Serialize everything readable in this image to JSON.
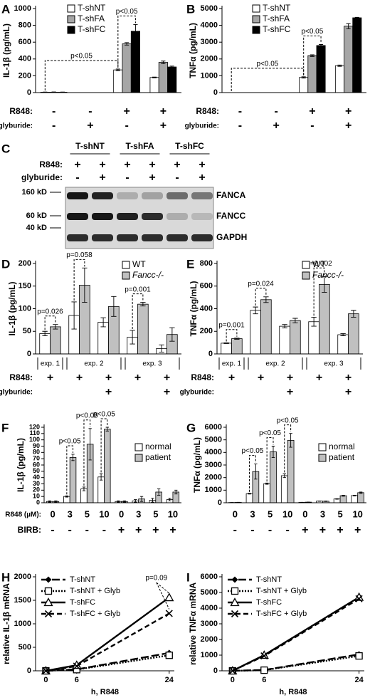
{
  "chart_data": [
    {
      "type": "bar",
      "panel": "A",
      "ylabel": "IL-1β (pg/mL)",
      "ylim": [
        0,
        1000
      ],
      "yticks": [
        0,
        200,
        400,
        600,
        800,
        1000
      ],
      "series": [
        {
          "name": "T-shNT",
          "color": "#ffffff",
          "values": [
            5,
            0,
            270,
            180
          ],
          "errors": [
            2,
            0,
            10,
            5
          ]
        },
        {
          "name": "T-shFA",
          "color": "#a6a6a6",
          "values": [
            5,
            0,
            580,
            360
          ],
          "errors": [
            3,
            0,
            15,
            15
          ]
        },
        {
          "name": "T-shFC",
          "color": "#000000",
          "values": [
            5,
            0,
            730,
            305
          ],
          "errors": [
            2,
            0,
            80,
            10
          ]
        }
      ],
      "conditions": [
        {
          "label": "R848:",
          "values": [
            "-",
            "-",
            "+",
            "+"
          ]
        },
        {
          "label": "glyburide:",
          "values": [
            "-",
            "+",
            "-",
            "+"
          ]
        }
      ],
      "annotations": [
        "p<0.05",
        "p<0.05"
      ],
      "legend": "upper left"
    },
    {
      "type": "bar",
      "panel": "B",
      "ylabel": "TNFα (pg/mL)",
      "ylim": [
        0,
        5000
      ],
      "yticks": [
        0,
        1000,
        2000,
        3000,
        4000,
        5000
      ],
      "series": [
        {
          "name": "T-shNT",
          "color": "#ffffff",
          "values": [
            0,
            0,
            900,
            1600
          ],
          "errors": [
            0,
            0,
            40,
            40
          ]
        },
        {
          "name": "T-shFA",
          "color": "#a6a6a6",
          "values": [
            0,
            0,
            2200,
            3950
          ],
          "errors": [
            0,
            0,
            50,
            150
          ]
        },
        {
          "name": "T-shFC",
          "color": "#000000",
          "values": [
            0,
            0,
            2800,
            4450
          ],
          "errors": [
            0,
            0,
            60,
            30
          ]
        }
      ],
      "conditions": [
        {
          "label": "R848:",
          "values": [
            "-",
            "-",
            "+",
            "+"
          ]
        },
        {
          "label": "glyburide:",
          "values": [
            "-",
            "+",
            "-",
            "+"
          ]
        }
      ],
      "annotations": [
        "p<0.05",
        "p<0.05"
      ],
      "legend": "upper left"
    },
    {
      "type": "bar",
      "panel": "D",
      "ylabel": "IL-1β (pg/mL)",
      "ylim": [
        0,
        200
      ],
      "yticks": [
        0,
        50,
        100,
        150,
        200
      ],
      "series": [
        {
          "name": "WT",
          "color": "#ffffff",
          "values": [
            45,
            85,
            70,
            37,
            12
          ],
          "errors": [
            5,
            30,
            10,
            15,
            8
          ]
        },
        {
          "name": "Fancc-/-",
          "color": "#c0c0c0",
          "values": [
            60,
            152,
            105,
            110,
            43
          ],
          "errors": [
            5,
            38,
            22,
            4,
            15
          ]
        }
      ],
      "groups": [
        "exp. 1",
        "exp. 2",
        "exp. 3"
      ],
      "conditions": [
        {
          "label": "R848:",
          "values": [
            "+",
            "+",
            "+",
            "+",
            "+"
          ]
        },
        {
          "label": "glyburide:",
          "values": [
            "",
            "",
            "+",
            "",
            "+"
          ]
        }
      ],
      "annotations": [
        "p=0.026",
        "p=0.058",
        "p=0.001"
      ],
      "legend": "upper right"
    },
    {
      "type": "bar",
      "panel": "E",
      "ylabel": "TNFα (pg/mL)",
      "ylim": [
        0,
        800
      ],
      "yticks": [
        0,
        200,
        400,
        600,
        800
      ],
      "series": [
        {
          "name": "WT",
          "color": "#ffffff",
          "values": [
            95,
            385,
            245,
            285,
            170
          ],
          "errors": [
            3,
            30,
            15,
            40,
            10
          ]
        },
        {
          "name": "Fancc-/-",
          "color": "#c0c0c0",
          "values": [
            135,
            480,
            295,
            615,
            355
          ],
          "errors": [
            5,
            25,
            20,
            70,
            30
          ]
        }
      ],
      "groups": [
        "exp. 1",
        "exp. 2",
        "exp. 3"
      ],
      "conditions": [
        {
          "label": "R848:",
          "values": [
            "+",
            "+",
            "+",
            "+",
            "+"
          ]
        },
        {
          "label": "glyburide:",
          "values": [
            "",
            "",
            "+",
            "",
            "+"
          ]
        }
      ],
      "annotations": [
        "p=0.001",
        "p=0.024",
        "p=0.002"
      ],
      "legend": "upper right"
    },
    {
      "type": "bar",
      "panel": "F",
      "ylabel": "IL-1β (pg/mL)",
      "ylim": [
        0,
        120
      ],
      "yticks": [
        0,
        10,
        20,
        30,
        40,
        50,
        60,
        70,
        80,
        90,
        100,
        110,
        120
      ],
      "series": [
        {
          "name": "normal",
          "color": "#ffffff",
          "values": [
            2,
            10,
            22,
            41,
            2,
            3,
            4,
            5
          ],
          "errors": [
            1,
            1,
            3,
            5,
            1,
            2,
            3,
            2
          ]
        },
        {
          "name": "patient",
          "color": "#c0c0c0",
          "values": [
            2,
            72,
            93,
            117,
            2,
            6,
            17,
            17
          ],
          "errors": [
            1,
            5,
            25,
            3,
            1,
            4,
            5,
            3
          ]
        }
      ],
      "conditions": [
        {
          "label": "R848 (µM):",
          "values": [
            "0",
            "3",
            "5",
            "10",
            "0",
            "3",
            "5",
            "10"
          ]
        },
        {
          "label": "BIRB:",
          "values": [
            "-",
            "-",
            "-",
            "-",
            "+",
            "+",
            "+",
            "+"
          ]
        }
      ],
      "annotations": [
        "p<0.05",
        "p<0.05",
        "p<0.05"
      ],
      "legend": "right"
    },
    {
      "type": "bar",
      "panel": "G",
      "ylabel": "TNFα (pg/mL)",
      "ylim": [
        0,
        6000
      ],
      "yticks": [
        0,
        1000,
        2000,
        3000,
        4000,
        5000,
        6000
      ],
      "series": [
        {
          "name": "normal",
          "color": "#ffffff",
          "values": [
            20,
            720,
            1520,
            2150,
            30,
            130,
            300,
            570
          ],
          "errors": [
            5,
            30,
            50,
            150,
            5,
            10,
            20,
            30
          ]
        },
        {
          "name": "patient",
          "color": "#c0c0c0",
          "values": [
            30,
            2480,
            4050,
            4960,
            50,
            120,
            560,
            800
          ],
          "errors": [
            5,
            600,
            450,
            550,
            5,
            20,
            40,
            50
          ]
        }
      ],
      "conditions": [
        {
          "label": "",
          "values": [
            "0",
            "3",
            "5",
            "10",
            "0",
            "3",
            "5",
            "10"
          ]
        },
        {
          "label": "",
          "values": [
            "-",
            "-",
            "-",
            "-",
            "+",
            "+",
            "+",
            "+"
          ]
        }
      ],
      "annotations": [
        "p<0.05",
        "p<0.05",
        "p<0.05"
      ],
      "legend": "right"
    },
    {
      "type": "line",
      "panel": "H",
      "ylabel": "relative IL-1β mRNA",
      "xlabel": "h, R848",
      "x": [
        0,
        6,
        24
      ],
      "xlim": [
        -2,
        25
      ],
      "xticks": [
        0,
        6,
        24
      ],
      "ylim": [
        0,
        2000
      ],
      "yticks": [
        0,
        500,
        1000,
        1500,
        2000
      ],
      "series": [
        {
          "name": "T-shNT",
          "color": "#000000",
          "dash": "long-dash",
          "marker": "diamond",
          "values": [
            0,
            30,
            380
          ]
        },
        {
          "name": "T-shNT + Glyb",
          "color": "#000000",
          "dash": "dotted",
          "marker": "square",
          "values": [
            0,
            25,
            330
          ]
        },
        {
          "name": "T-shFC",
          "color": "#000000",
          "dash": "solid",
          "marker": "triangle",
          "values": [
            0,
            120,
            1560
          ]
        },
        {
          "name": "T-shFC + Glyb",
          "color": "#000000",
          "dash": "dashed",
          "marker": "x",
          "values": [
            0,
            100,
            1220
          ]
        }
      ],
      "annotations": [
        "p=0.09"
      ],
      "legend": "upper left"
    },
    {
      "type": "line",
      "panel": "I",
      "ylabel": "relative TNFα mRNA",
      "xlabel": "h, R848",
      "x": [
        0,
        6,
        24
      ],
      "xlim": [
        -2,
        25
      ],
      "xticks": [
        0,
        6,
        24
      ],
      "ylim": [
        0,
        6000
      ],
      "yticks": [
        0,
        1000,
        2000,
        3000,
        4000,
        5000,
        6000
      ],
      "series": [
        {
          "name": "T-shNT",
          "color": "#000000",
          "dash": "long-dash",
          "marker": "diamond",
          "values": [
            0,
            50,
            1050
          ]
        },
        {
          "name": "T-shNT + Glyb",
          "color": "#000000",
          "dash": "dotted",
          "marker": "square",
          "values": [
            0,
            40,
            950
          ]
        },
        {
          "name": "T-shFC",
          "color": "#000000",
          "dash": "solid",
          "marker": "triangle",
          "values": [
            0,
            1000,
            4700
          ]
        },
        {
          "name": "T-shFC + Glyb",
          "color": "#000000",
          "dash": "dashed",
          "marker": "x",
          "values": [
            0,
            950,
            4600
          ]
        }
      ],
      "legend": "upper left"
    }
  ],
  "blot": {
    "panel": "C",
    "columns": [
      "T-shNT",
      "T-shFA",
      "T-shFC"
    ],
    "rows": [
      {
        "label": "R848:",
        "values": [
          "+",
          "+",
          "+",
          "+",
          "+",
          "+"
        ]
      },
      {
        "label": "glyburide:",
        "values": [
          "-",
          "+",
          "-",
          "+",
          "-",
          "+"
        ]
      }
    ],
    "markers": [
      "160 kD",
      "60 kD",
      "40 kD"
    ],
    "bands": [
      "FANCA",
      "FANCC",
      "GAPDH"
    ]
  }
}
